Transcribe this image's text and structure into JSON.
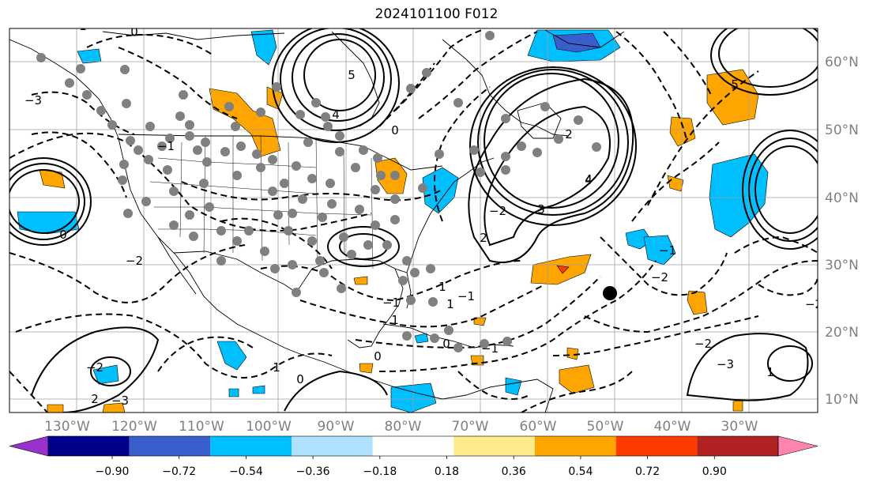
{
  "title": "2024101100 F012",
  "lon_labels": [
    "130°W",
    "120°W",
    "110°W",
    "100°W",
    "90°W",
    "80°W",
    "70°W",
    "60°W",
    "50°W",
    "40°W",
    "30°W"
  ],
  "lat_labels": [
    "60°N",
    "50°N",
    "40°N",
    "30°N",
    "20°N",
    "10°N"
  ],
  "colorbar": {
    "colors": [
      "#9932cc",
      "#00008b",
      "#3a5fcd",
      "#00bfff",
      "#b0e2ff",
      "#ffffff",
      "#ffeb8a",
      "#ffa500",
      "#ff3b00",
      "#b22222",
      "#ff85b0"
    ],
    "ticks": [
      "−0.90",
      "−0.72",
      "−0.54",
      "−0.36",
      "−0.18",
      "0.18",
      "0.36",
      "0.54",
      "0.72",
      "0.90"
    ]
  },
  "contour_labels": [
    "1",
    "0",
    "−3",
    "5",
    "4",
    "3",
    "2",
    "−2",
    "−1",
    "1",
    "−1",
    "0",
    "−2",
    "3",
    "−2",
    "−3",
    "2",
    "−1",
    "0",
    "1",
    "−1",
    "0",
    "−2",
    "−3",
    "4",
    "−2",
    "−1",
    "0",
    "1",
    "2",
    "1",
    "0",
    "1",
    "4",
    "−2",
    "0",
    "5"
  ],
  "station_marker_color": "#808080",
  "storm_marker_color": "#000000"
}
